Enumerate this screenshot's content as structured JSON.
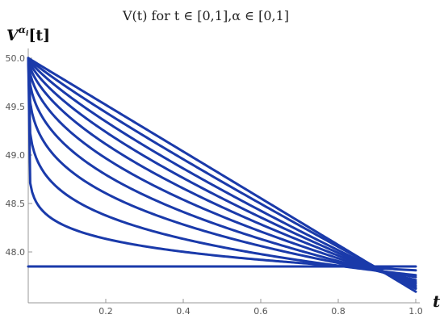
{
  "chart_data": {
    "type": "line",
    "title": "V(t) for t ∈ [0,1],α ∈ [0,1]",
    "ylabel": "V^{αi}[t]",
    "xlabel": "t",
    "xlim": [
      0,
      1
    ],
    "ylim": [
      47.55,
      50.02
    ],
    "x_ticks": [
      "0.2",
      "0.4",
      "0.6",
      "0.8",
      "1.0"
    ],
    "y_ticks": [
      "48.0",
      "48.5",
      "49.0",
      "49.5",
      "50.0"
    ],
    "grid": false,
    "line_color": "#1a3aaa",
    "series": [
      {
        "alpha": 1.0,
        "start": 50.0,
        "end": 47.59
      },
      {
        "alpha": 0.9,
        "start": 50.0,
        "end": 47.62
      },
      {
        "alpha": 0.8,
        "start": 50.0,
        "end": 47.63
      },
      {
        "alpha": 0.7,
        "start": 50.0,
        "end": 47.65
      },
      {
        "alpha": 0.6,
        "start": 50.0,
        "end": 47.67
      },
      {
        "alpha": 0.5,
        "start": 50.0,
        "end": 47.69
      },
      {
        "alpha": 0.4,
        "start": 50.0,
        "end": 47.71
      },
      {
        "alpha": 0.3,
        "start": 50.0,
        "end": 47.74
      },
      {
        "alpha": 0.2,
        "start": 50.0,
        "end": 47.76
      },
      {
        "alpha": 0.1,
        "start": 50.0,
        "end": 47.81
      },
      {
        "alpha": 0.0,
        "start": 47.85,
        "end": 47.85
      }
    ]
  }
}
